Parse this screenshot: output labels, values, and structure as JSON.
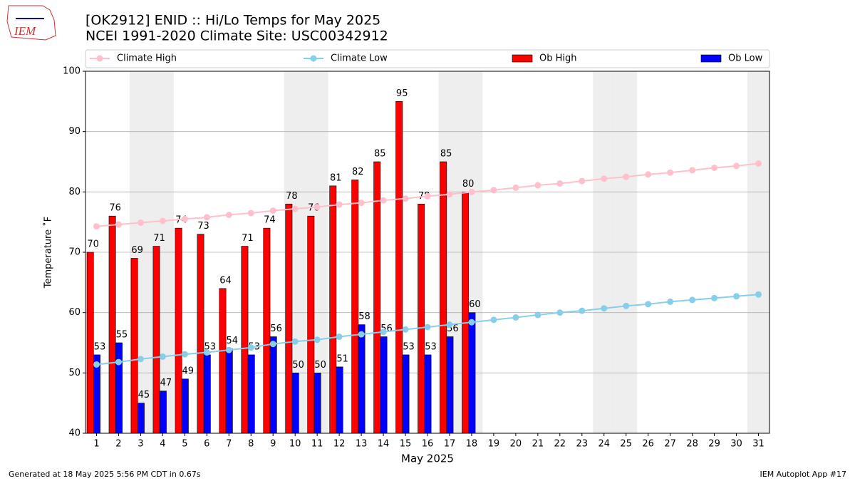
{
  "chart_data": {
    "type": "bar",
    "title": "[OK2912] ENID :: Hi/Lo Temps for May 2025",
    "subtitle": "NCEI 1991-2020 Climate Site: USC00342912",
    "xlabel": "May 2025",
    "ylabel": "Temperature ˚F",
    "x": [
      1,
      2,
      3,
      4,
      5,
      6,
      7,
      8,
      9,
      10,
      11,
      12,
      13,
      14,
      15,
      16,
      17,
      18,
      19,
      20,
      21,
      22,
      23,
      24,
      25,
      26,
      27,
      28,
      29,
      30,
      31
    ],
    "xlim": [
      0.5,
      31.5
    ],
    "xticks": [
      1,
      2,
      3,
      4,
      5,
      6,
      7,
      8,
      9,
      10,
      11,
      12,
      13,
      14,
      15,
      16,
      17,
      18,
      19,
      20,
      21,
      22,
      23,
      24,
      25,
      26,
      27,
      28,
      29,
      30,
      31
    ],
    "ylim": [
      40,
      100
    ],
    "yticks": [
      40,
      50,
      60,
      70,
      80,
      90,
      100
    ],
    "grid": true,
    "shaded_x": [
      3,
      4,
      10,
      11,
      17,
      18,
      24,
      25,
      31
    ],
    "series": [
      {
        "name": "Climate High",
        "type": "line",
        "color": "#ffc0cb",
        "values": [
          74.3,
          74.6,
          74.9,
          75.2,
          75.5,
          75.8,
          76.2,
          76.5,
          76.9,
          77.2,
          77.5,
          77.9,
          78.2,
          78.6,
          78.9,
          79.3,
          79.6,
          80.0,
          80.3,
          80.7,
          81.1,
          81.4,
          81.8,
          82.2,
          82.5,
          82.9,
          83.2,
          83.6,
          84.0,
          84.3,
          84.7
        ]
      },
      {
        "name": "Climate Low",
        "type": "line",
        "color": "#87ceeb",
        "values": [
          51.4,
          51.8,
          52.3,
          52.7,
          53.1,
          53.4,
          53.8,
          54.2,
          54.8,
          55.2,
          55.5,
          56.0,
          56.4,
          56.8,
          57.2,
          57.6,
          58.0,
          58.4,
          58.8,
          59.2,
          59.6,
          60.0,
          60.3,
          60.7,
          61.1,
          61.4,
          61.8,
          62.1,
          62.4,
          62.7,
          63.0
        ]
      },
      {
        "name": "Ob High",
        "type": "bar",
        "color": "#ff0000",
        "values": [
          70,
          76,
          69,
          71,
          74,
          73,
          64,
          71,
          74,
          78,
          76,
          81,
          82,
          85,
          95,
          78,
          85,
          80,
          null,
          null,
          null,
          null,
          null,
          null,
          null,
          null,
          null,
          null,
          null,
          null,
          null
        ]
      },
      {
        "name": "Ob Low",
        "type": "bar",
        "color": "#0000ff",
        "values": [
          53,
          55,
          45,
          47,
          49,
          53,
          54,
          53,
          56,
          50,
          50,
          51,
          58,
          56,
          53,
          53,
          56,
          60,
          null,
          null,
          null,
          null,
          null,
          null,
          null,
          null,
          null,
          null,
          null,
          null,
          null
        ]
      }
    ]
  },
  "logo": "IEM",
  "footer_left": "Generated at 18 May 2025 5:56 PM CDT in 0.67s",
  "footer_right": "IEM Autoplot App #17"
}
